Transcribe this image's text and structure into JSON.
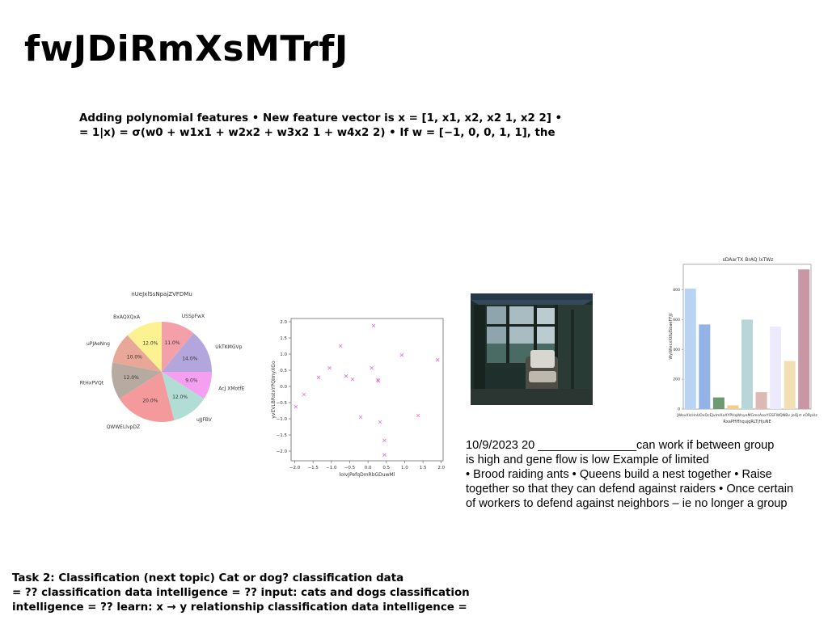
{
  "title": "fwJDiRmXsMTrfJ",
  "intro_lines": [
    "Adding polynomial features • New feature vector is x = [1, x1, x2, x2 1, x2 2] •",
    "= 1|x) = σ(w0 + w1x1 + w2x2 + w3x2 1 + w4x2 2) • If w = [−1, 0, 0, 1, 1], the"
  ],
  "note_lines": [
    "10/9/2023 20 _______________can work if between group",
    "is high and gene flow is low Example of limited",
    "• Brood raiding ants • Queens build a nest together • Raise",
    "together so that they can defend against raiders • Once certain",
    "of workers to defend against neighbors – ie no longer a group"
  ],
  "task_lines": [
    "Task 2: Classification (next topic) Cat or dog? classification data",
    "= ?? classification data intelligence = ?? input: cats and dogs classification",
    "intelligence = ?? learn: x → y relationship classification data intelligence ="
  ],
  "photo": {
    "label": "porch-window-photo"
  },
  "chart_data": [
    {
      "type": "pie",
      "title": "nUeJxlSsNpajZVFDMu",
      "slices": [
        {
          "label": "USSpFwX",
          "value": 11.0,
          "pct": "11.0%",
          "color": "#f4a0aa"
        },
        {
          "label": "UkTKMGVp",
          "value": 14.0,
          "pct": "14.0%",
          "color": "#b3a6dc"
        },
        {
          "label": "AcJ XMotfE",
          "value": 9.0,
          "pct": "9.0%",
          "color": "#f59ff0"
        },
        {
          "label": "uJJFBV",
          "value": 12.0,
          "pct": "12.0%",
          "color": "#b2ddd4"
        },
        {
          "label": "QWWELlvpDZ",
          "value": 20.0,
          "pct": "20.0%",
          "color": "#f59a9c"
        },
        {
          "label": "RtHxPVQt",
          "value": 12.0,
          "pct": "12.0%",
          "color": "#b7aba1"
        },
        {
          "label": "uPJAeNng",
          "value": 10.0,
          "pct": "10.0%",
          "color": "#e8a797"
        },
        {
          "label": "BxAQXQxA",
          "value": 12.0,
          "pct": "12.0%",
          "color": "#fdf291"
        }
      ]
    },
    {
      "type": "scatter",
      "xlabel": "loIvJPefqDmRbGDuwMl",
      "ylabel": "yvEVLBRstxYPQImyXGo",
      "xlim": [
        -2.1,
        2.05
      ],
      "ylim": [
        -2.3,
        2.1
      ],
      "xticks": [
        -2.0,
        -1.5,
        -1.0,
        -0.5,
        0.0,
        0.5,
        1.0,
        1.5,
        2.0
      ],
      "yticks": [
        -2.0,
        -1.5,
        -1.0,
        -0.5,
        0.0,
        0.5,
        1.0,
        1.5,
        2.0
      ],
      "xtick_labels": [
        "−2.0",
        "−1.5",
        "−1.0",
        "−0.5",
        "0.0",
        "0.5",
        "1.0",
        "1.5",
        "2.0"
      ],
      "ytick_labels": [
        "−2.0",
        "−1.5",
        "−1.0",
        "−0.5",
        "0.0",
        "0.5",
        "1.0",
        "1.5",
        "2.0"
      ],
      "marker": "x",
      "color": "#e56fe0",
      "points": [
        [
          -1.97,
          -0.63
        ],
        [
          -1.75,
          -0.25
        ],
        [
          -1.35,
          0.28
        ],
        [
          -1.05,
          0.57
        ],
        [
          -0.75,
          1.25
        ],
        [
          -0.6,
          0.32
        ],
        [
          -0.42,
          0.22
        ],
        [
          -0.2,
          -0.95
        ],
        [
          0.1,
          0.57
        ],
        [
          0.15,
          1.88
        ],
        [
          0.27,
          0.2
        ],
        [
          0.28,
          0.17
        ],
        [
          0.33,
          -1.1
        ],
        [
          0.45,
          -1.67
        ],
        [
          0.45,
          -2.12
        ],
        [
          0.92,
          0.97
        ],
        [
          1.37,
          -0.9
        ],
        [
          1.9,
          0.82
        ]
      ]
    },
    {
      "type": "bar",
      "title": "sDAarTX BrAQ lxTWz",
      "xlabel": "RxaPHHhqujqRLTjHjuNE",
      "ylabel": "WyWlecxXtfuISbaeFFJjl",
      "ylim": [
        0,
        970
      ],
      "yticks": [
        0,
        200,
        400,
        600,
        800
      ],
      "categories": [
        "JWovX",
        "IcHnUOx",
        "OcEJvIm",
        "XoXYPHq",
        "WnyeMGm",
        "cAaxYG",
        "SFWQNBv",
        "JoQjrt",
        "cORpUz"
      ],
      "category_text": "JWovXIcHnUOxOcEJvImXoXYPHqWnyeMGmcAaxYGSFWQNBv JoQjrt cORpUz",
      "values": [
        808,
        567,
        78,
        25,
        600,
        113,
        553,
        322,
        936
      ],
      "colors": [
        "#b8d3f3",
        "#93b2e6",
        "#6e9a70",
        "#f0cf88",
        "#b8d6d8",
        "#dcbab3",
        "#eeeafd",
        "#f2dfb3",
        "#c996a6"
      ]
    }
  ]
}
